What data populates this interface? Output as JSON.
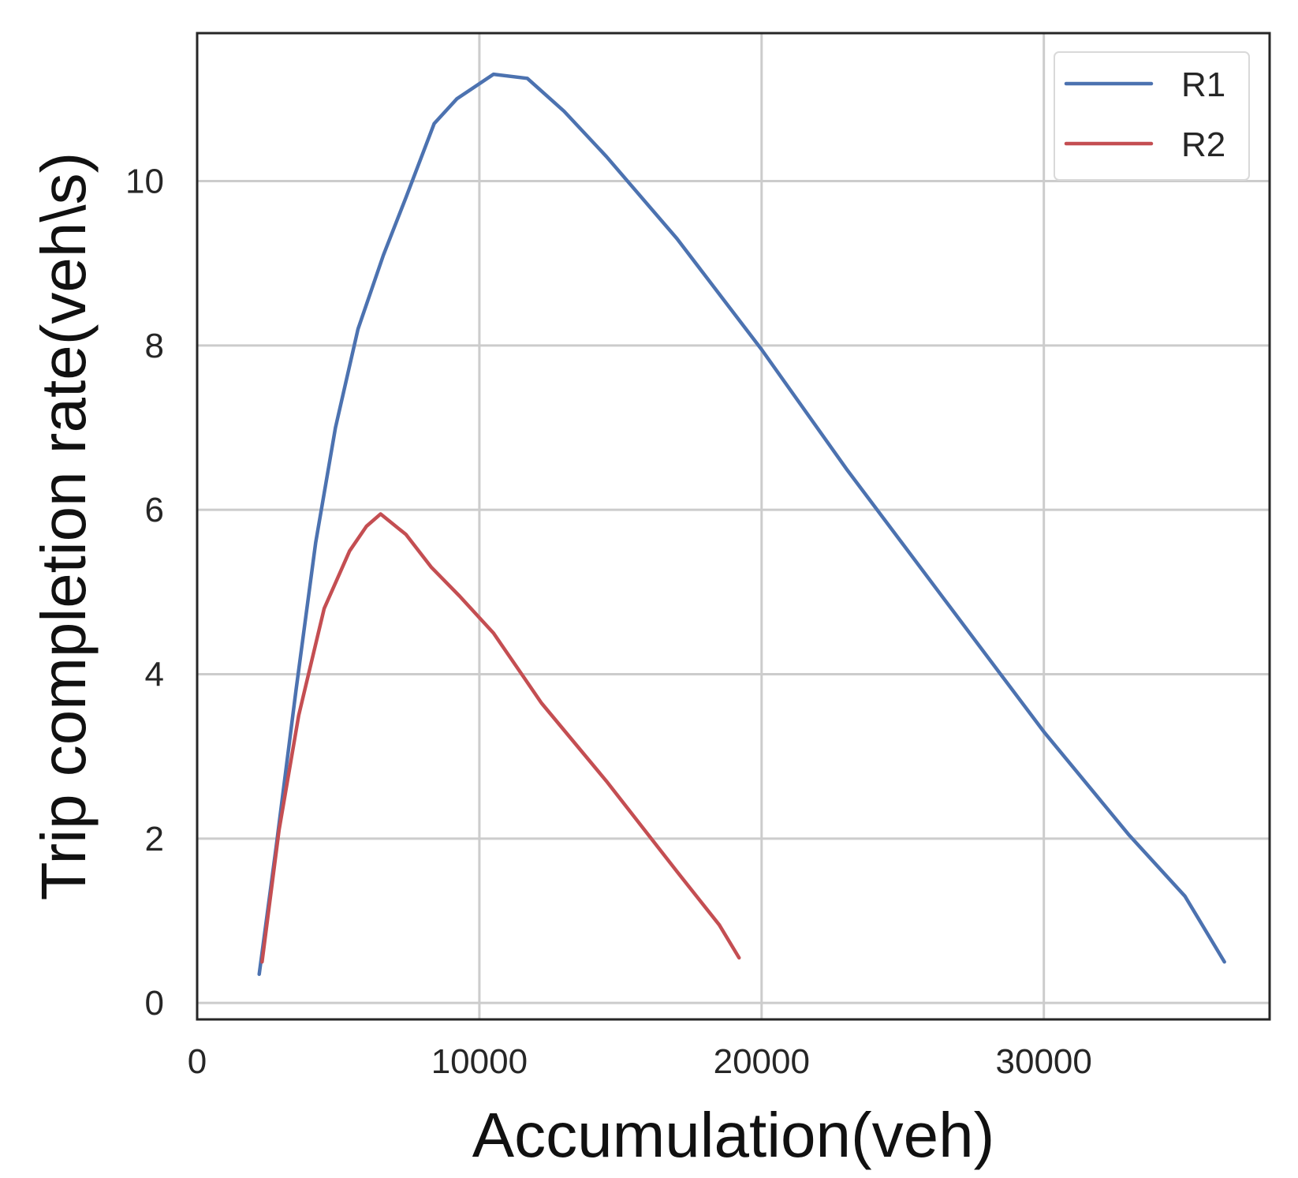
{
  "chart_data": {
    "type": "line",
    "title": "",
    "xlabel": "Accumulation(veh)",
    "ylabel": "Trip completion rate(veh\\s)",
    "xlim": [
      0,
      38000
    ],
    "ylim": [
      -0.2,
      11.8
    ],
    "xticks": [
      0,
      10000,
      20000,
      30000
    ],
    "yticks": [
      0,
      2,
      4,
      6,
      8,
      10
    ],
    "grid": true,
    "legend_position": "top-right",
    "series": [
      {
        "name": "R1",
        "color": "#4c72b0",
        "points": [
          [
            2200,
            0.35
          ],
          [
            2800,
            1.9
          ],
          [
            3500,
            3.8
          ],
          [
            4200,
            5.6
          ],
          [
            4900,
            7.0
          ],
          [
            5700,
            8.2
          ],
          [
            6600,
            9.1
          ],
          [
            7400,
            9.8
          ],
          [
            8400,
            10.7
          ],
          [
            9200,
            11.0
          ],
          [
            10500,
            11.3
          ],
          [
            11700,
            11.25
          ],
          [
            13000,
            10.85
          ],
          [
            14500,
            10.3
          ],
          [
            17000,
            9.3
          ],
          [
            20000,
            7.95
          ],
          [
            23000,
            6.5
          ],
          [
            26500,
            4.9
          ],
          [
            30000,
            3.3
          ],
          [
            33000,
            2.05
          ],
          [
            35000,
            1.3
          ],
          [
            36400,
            0.5
          ]
        ]
      },
      {
        "name": "R2",
        "color": "#c44e52",
        "points": [
          [
            2300,
            0.5
          ],
          [
            2900,
            2.1
          ],
          [
            3600,
            3.5
          ],
          [
            4500,
            4.8
          ],
          [
            5400,
            5.5
          ],
          [
            6000,
            5.8
          ],
          [
            6500,
            5.95
          ],
          [
            7400,
            5.7
          ],
          [
            8300,
            5.3
          ],
          [
            9300,
            4.95
          ],
          [
            10500,
            4.5
          ],
          [
            11500,
            4.0
          ],
          [
            12200,
            3.65
          ],
          [
            14500,
            2.7
          ],
          [
            17000,
            1.6
          ],
          [
            18500,
            0.95
          ],
          [
            19200,
            0.55
          ]
        ]
      }
    ]
  }
}
